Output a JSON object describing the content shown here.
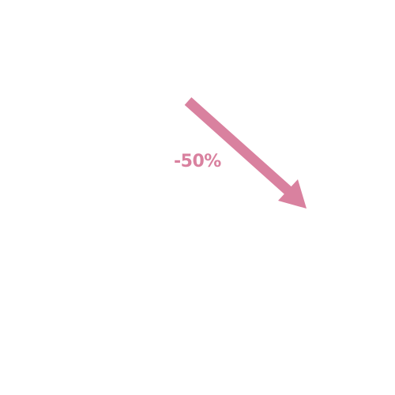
{
  "indicator": {
    "label": "-50%",
    "direction": "down-right",
    "icon": "arrow-down-right-icon",
    "color": "#d9819f"
  }
}
